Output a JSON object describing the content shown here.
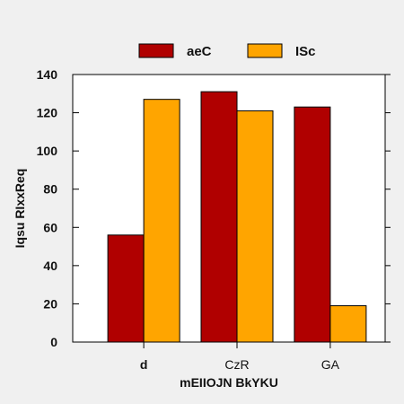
{
  "chart_data": {
    "type": "bar",
    "categories": [
      "d",
      "CzR",
      "GA"
    ],
    "series": [
      {
        "name": "aeC",
        "values": [
          56,
          131,
          123
        ],
        "color": "#b00000"
      },
      {
        "name": "ISc",
        "values": [
          127,
          121,
          19
        ],
        "color": "#ffa500"
      }
    ],
    "xlabel": "mEIIOJN BkYKU",
    "ylabel": "Iqsu RIxxReq",
    "ylim": [
      0,
      140
    ],
    "yticks": [
      0,
      20,
      40,
      60,
      80,
      100,
      120,
      140
    ],
    "grid": false,
    "legend": "top-center"
  }
}
